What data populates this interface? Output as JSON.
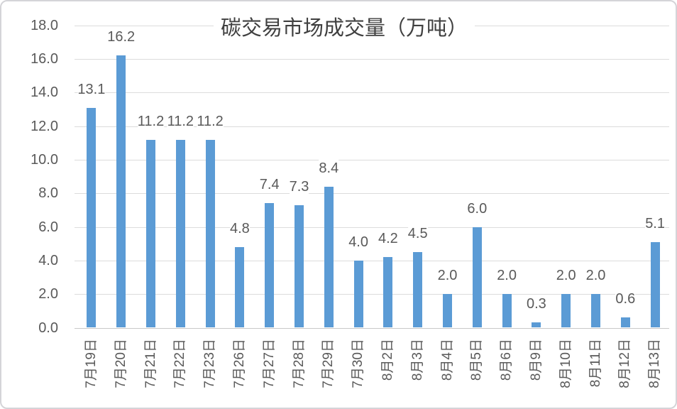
{
  "chart_data": {
    "type": "bar",
    "title": "碳交易市场成交量（万吨）",
    "categories": [
      "7月19日",
      "7月20日",
      "7月21日",
      "7月22日",
      "7月23日",
      "7月26日",
      "7月27日",
      "7月28日",
      "7月29日",
      "7月30日",
      "8月2日",
      "8月3日",
      "8月4日",
      "8月5日",
      "8月6日",
      "8月9日",
      "8月10日",
      "8月11日",
      "8月12日",
      "8月13日"
    ],
    "values": [
      13.1,
      16.2,
      11.2,
      11.2,
      11.2,
      4.8,
      7.4,
      7.3,
      8.4,
      4.0,
      4.2,
      4.5,
      2.0,
      6.0,
      2.0,
      0.3,
      2.0,
      2.0,
      0.6,
      5.1
    ],
    "data_label_decimals": 1,
    "xlabel": "",
    "ylabel": "",
    "ylim": [
      0,
      18
    ],
    "ytick_step": 2,
    "ytick_decimals": 1,
    "grid": true,
    "legend_position": "none",
    "x_label_rotation_degrees": 90,
    "colors": {
      "bar": "#5b9bd5",
      "gridline": "#dcdcdc",
      "axis_line": "#c8c8c8",
      "tick_label": "#595959",
      "data_label": "#595959",
      "title": "#404040",
      "background": "#ffffff",
      "card_border": "#d4d4d8"
    }
  }
}
